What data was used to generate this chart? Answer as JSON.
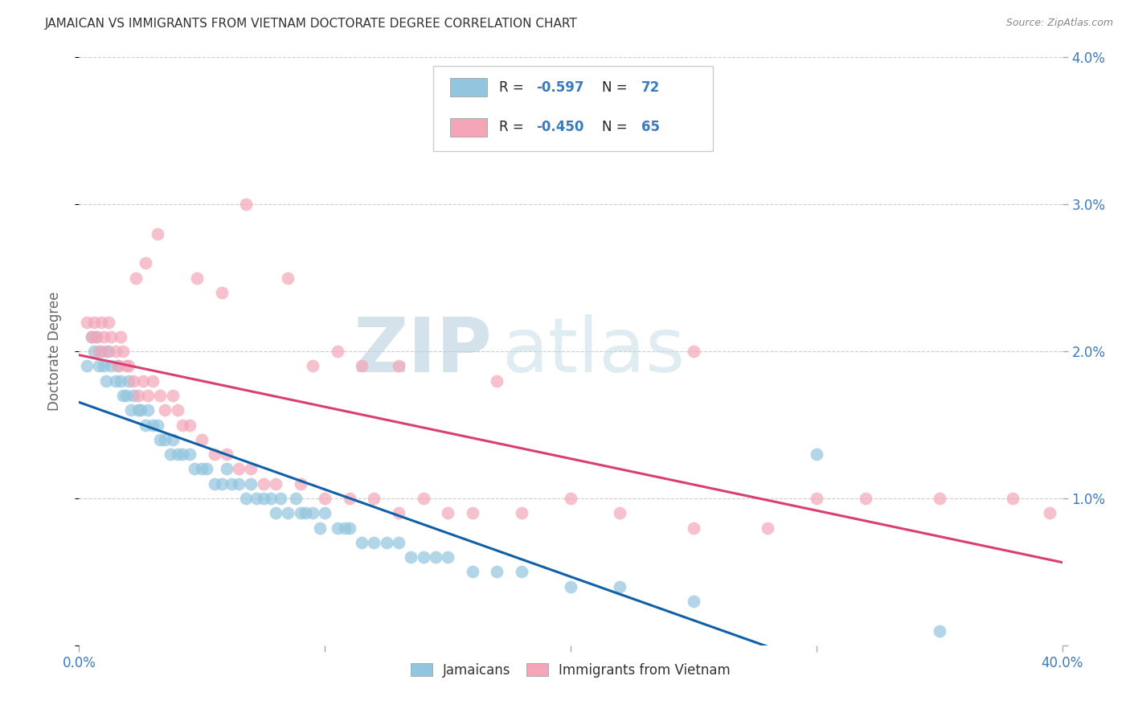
{
  "title": "JAMAICAN VS IMMIGRANTS FROM VIETNAM DOCTORATE DEGREE CORRELATION CHART",
  "source": "Source: ZipAtlas.com",
  "ylabel": "Doctorate Degree",
  "xlim": [
    0.0,
    0.4
  ],
  "ylim": [
    0.0,
    0.04
  ],
  "xticks": [
    0.0,
    0.1,
    0.2,
    0.3,
    0.4
  ],
  "xticklabels": [
    "0.0%",
    "",
    "",
    "",
    "40.0%"
  ],
  "yticks": [
    0.0,
    0.01,
    0.02,
    0.03,
    0.04
  ],
  "yticklabels_right": [
    "",
    "1.0%",
    "2.0%",
    "3.0%",
    "4.0%"
  ],
  "legend_label1": "Jamaicans",
  "legend_label2": "Immigrants from Vietnam",
  "R1": "-0.597",
  "N1": "72",
  "R2": "-0.450",
  "N2": "65",
  "color_blue": "#92c5de",
  "color_pink": "#f4a6b8",
  "color_blue_line": "#1060a8",
  "color_pink_line": "#d94070",
  "watermark_zip": "ZIP",
  "watermark_atlas": "atlas",
  "blue_scatter_x": [
    0.003,
    0.005,
    0.006,
    0.007,
    0.008,
    0.009,
    0.01,
    0.011,
    0.012,
    0.013,
    0.015,
    0.016,
    0.017,
    0.018,
    0.019,
    0.02,
    0.021,
    0.022,
    0.024,
    0.025,
    0.027,
    0.028,
    0.03,
    0.032,
    0.033,
    0.035,
    0.037,
    0.038,
    0.04,
    0.042,
    0.045,
    0.047,
    0.05,
    0.052,
    0.055,
    0.058,
    0.06,
    0.062,
    0.065,
    0.068,
    0.07,
    0.072,
    0.075,
    0.078,
    0.08,
    0.082,
    0.085,
    0.088,
    0.09,
    0.092,
    0.095,
    0.098,
    0.1,
    0.105,
    0.108,
    0.11,
    0.115,
    0.12,
    0.125,
    0.13,
    0.135,
    0.14,
    0.145,
    0.15,
    0.16,
    0.17,
    0.18,
    0.2,
    0.22,
    0.25,
    0.3,
    0.35
  ],
  "blue_scatter_y": [
    0.019,
    0.021,
    0.02,
    0.021,
    0.019,
    0.02,
    0.019,
    0.018,
    0.02,
    0.019,
    0.018,
    0.019,
    0.018,
    0.017,
    0.017,
    0.018,
    0.016,
    0.017,
    0.016,
    0.016,
    0.015,
    0.016,
    0.015,
    0.015,
    0.014,
    0.014,
    0.013,
    0.014,
    0.013,
    0.013,
    0.013,
    0.012,
    0.012,
    0.012,
    0.011,
    0.011,
    0.012,
    0.011,
    0.011,
    0.01,
    0.011,
    0.01,
    0.01,
    0.01,
    0.009,
    0.01,
    0.009,
    0.01,
    0.009,
    0.009,
    0.009,
    0.008,
    0.009,
    0.008,
    0.008,
    0.008,
    0.007,
    0.007,
    0.007,
    0.007,
    0.006,
    0.006,
    0.006,
    0.006,
    0.005,
    0.005,
    0.005,
    0.004,
    0.004,
    0.003,
    0.013,
    0.001
  ],
  "pink_scatter_x": [
    0.003,
    0.005,
    0.006,
    0.007,
    0.008,
    0.009,
    0.01,
    0.011,
    0.012,
    0.013,
    0.015,
    0.016,
    0.017,
    0.018,
    0.019,
    0.02,
    0.022,
    0.024,
    0.026,
    0.028,
    0.03,
    0.033,
    0.035,
    0.038,
    0.04,
    0.042,
    0.045,
    0.05,
    0.055,
    0.06,
    0.065,
    0.07,
    0.075,
    0.08,
    0.09,
    0.1,
    0.11,
    0.12,
    0.13,
    0.14,
    0.15,
    0.16,
    0.18,
    0.2,
    0.22,
    0.25,
    0.28,
    0.3,
    0.32,
    0.35,
    0.38,
    0.395,
    0.023,
    0.027,
    0.032,
    0.048,
    0.058,
    0.068,
    0.085,
    0.095,
    0.105,
    0.115,
    0.13,
    0.17,
    0.25
  ],
  "pink_scatter_y": [
    0.022,
    0.021,
    0.022,
    0.021,
    0.02,
    0.022,
    0.021,
    0.02,
    0.022,
    0.021,
    0.02,
    0.019,
    0.021,
    0.02,
    0.019,
    0.019,
    0.018,
    0.017,
    0.018,
    0.017,
    0.018,
    0.017,
    0.016,
    0.017,
    0.016,
    0.015,
    0.015,
    0.014,
    0.013,
    0.013,
    0.012,
    0.012,
    0.011,
    0.011,
    0.011,
    0.01,
    0.01,
    0.01,
    0.009,
    0.01,
    0.009,
    0.009,
    0.009,
    0.01,
    0.009,
    0.008,
    0.008,
    0.01,
    0.01,
    0.01,
    0.01,
    0.009,
    0.025,
    0.026,
    0.028,
    0.025,
    0.024,
    0.03,
    0.025,
    0.019,
    0.02,
    0.019,
    0.019,
    0.018,
    0.02
  ]
}
